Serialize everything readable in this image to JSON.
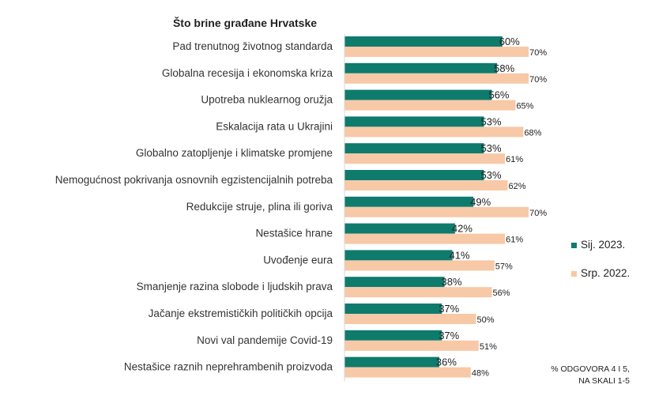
{
  "chart_data": {
    "type": "bar",
    "orientation": "horizontal",
    "title": "Što brine građane Hrvatske",
    "categories": [
      "Pad trenutnog životnog standarda",
      "Globalna recesija i ekonomska kriza",
      "Upotreba nuklearnog oružja",
      "Eskalacija rata u Ukrajini",
      "Globalno zatopljenje i klimatske promjene",
      "Nemogućnost pokrivanja osnovnih egzistencijalnih potreba",
      "Redukcije struje, plina ili goriva",
      "Nestašice hrane",
      "Uvođenje eura",
      "Smanjenje razina slobode i ljudskih prava",
      "Jačanje ekstremističkih političkih opcija",
      "Novi val pandemije Covid-19",
      "Nestašice raznih neprehrambenih proizvoda"
    ],
    "series": [
      {
        "name": "Sij. 2023.",
        "color": "#0f7b6c",
        "values": [
          60,
          58,
          56,
          53,
          53,
          53,
          49,
          42,
          41,
          38,
          37,
          37,
          36
        ]
      },
      {
        "name": "Srp. 2022.",
        "color": "#f7c9a7",
        "values": [
          70,
          70,
          65,
          68,
          61,
          62,
          70,
          61,
          57,
          56,
          50,
          51,
          48
        ]
      }
    ],
    "value_suffix": "%",
    "xlim": [
      0,
      100
    ],
    "grid": false,
    "legend": "right",
    "note": [
      "% ODGOVORA 4 I 5,",
      "NA SKALI 1-5"
    ]
  }
}
